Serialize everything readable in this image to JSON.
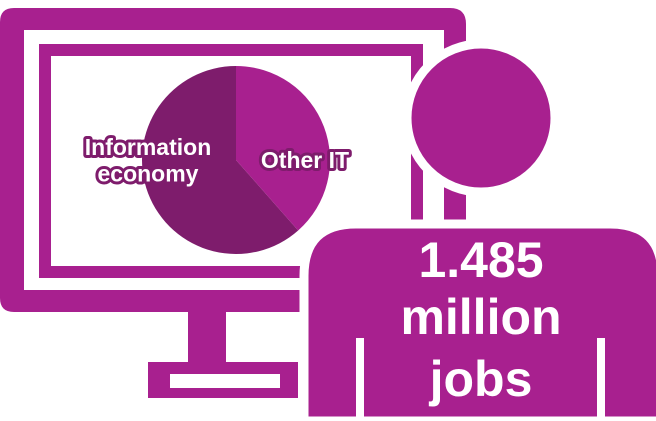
{
  "colors": {
    "primary": "#a8208f",
    "dark": "#7e1c6c",
    "background": "#ffffff"
  },
  "icons": [
    "computer-monitor-icon",
    "person-icon"
  ],
  "chart_data": {
    "type": "pie",
    "title": "",
    "slices": [
      {
        "label": "Information economy",
        "value": 61.5,
        "color": "#7e1c6c"
      },
      {
        "label": "Other IT",
        "value": 38.5,
        "color": "#a8208f"
      }
    ],
    "legend": "none",
    "annotation": [
      "1.485",
      "million",
      "jobs"
    ]
  }
}
